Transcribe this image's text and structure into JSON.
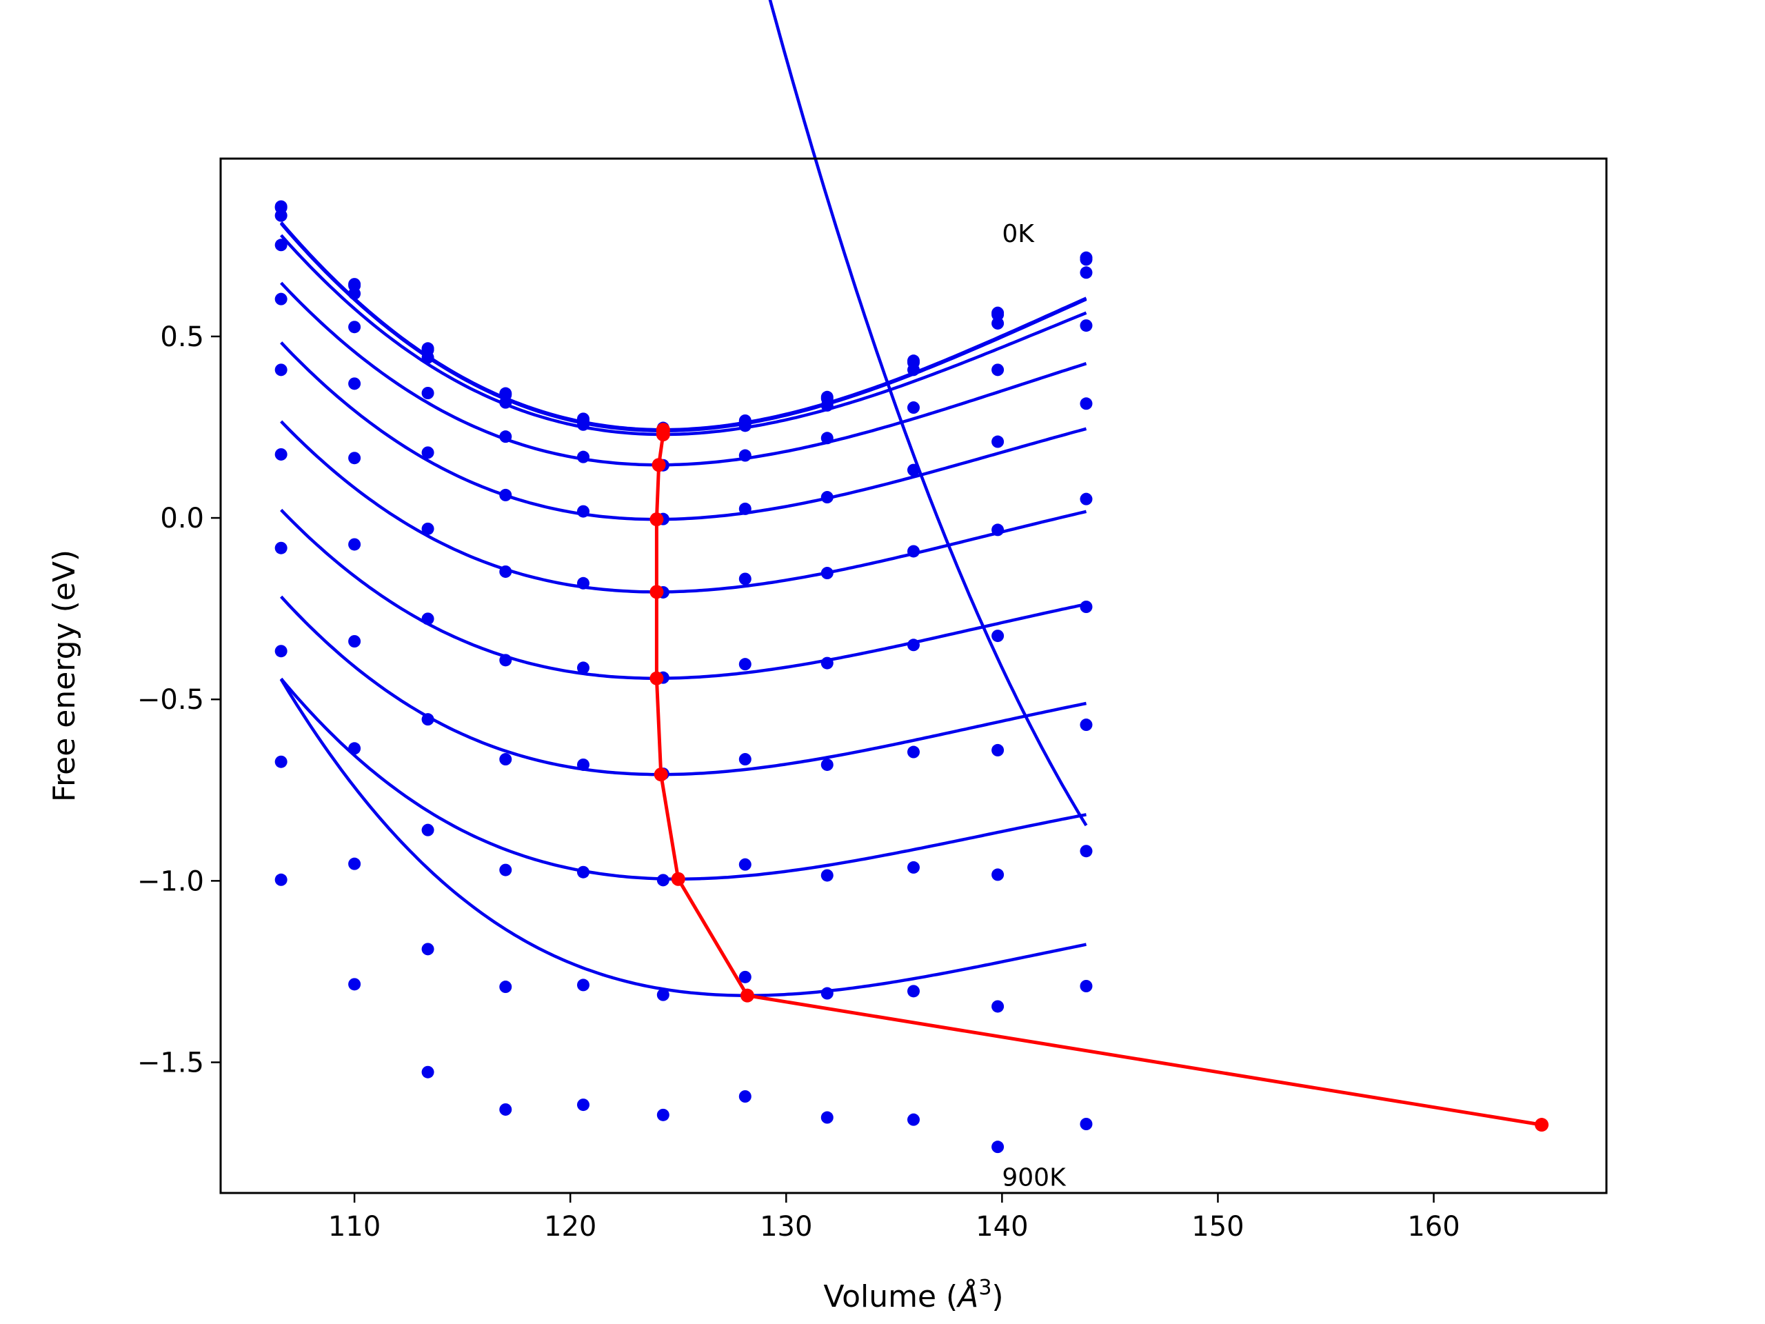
{
  "chart_data": {
    "type": "line",
    "xlabel_prefix": "Volume (",
    "xlabel_unit": "Å",
    "xlabel_exp": "3",
    "xlabel_suffix": ")",
    "ylabel": "Free energy (eV)",
    "xlim": [
      103.8,
      168
    ],
    "ylim": [
      -1.86,
      0.99
    ],
    "x_ticks": [
      110,
      120,
      130,
      140,
      150,
      160
    ],
    "y_ticks": [
      -1.5,
      -1.0,
      -0.5,
      0.0,
      0.5
    ],
    "x_tick_labels": [
      "110",
      "120",
      "130",
      "140",
      "150",
      "160"
    ],
    "y_tick_labels": [
      "−1.5",
      "−1.0",
      "−0.5",
      "0.0",
      "0.5"
    ],
    "annotations": [
      {
        "text": "0K",
        "x": 140.0,
        "y": 0.76
      },
      {
        "text": "900K",
        "x": 140.0,
        "y": -1.84
      }
    ],
    "x": [
      106.6,
      110.0,
      113.4,
      117.0,
      120.6,
      124.3,
      128.1,
      131.9,
      135.9,
      139.8,
      143.9
    ],
    "series": [
      {
        "values": [
          0.858,
          0.644,
          0.467,
          0.343,
          0.273,
          0.248,
          0.268,
          0.333,
          0.433,
          0.565,
          0.717
        ],
        "fit": {
          "xmin": 124.3,
          "ymin": 0.243,
          "a": 0.0022,
          "c": 0.5
        }
      },
      {
        "values": [
          0.855,
          0.64,
          0.463,
          0.339,
          0.269,
          0.244,
          0.264,
          0.329,
          0.428,
          0.56,
          0.712
        ],
        "fit": {
          "xmin": 124.3,
          "ymin": 0.24,
          "a": 0.0022,
          "c": 0.5
        }
      },
      {
        "values": [
          0.833,
          0.618,
          0.442,
          0.318,
          0.257,
          0.232,
          0.254,
          0.31,
          0.408,
          0.536,
          0.676
        ],
        "fit": {
          "xmin": 124.3,
          "ymin": 0.23,
          "a": 0.00215,
          "c": 0.55
        }
      },
      {
        "values": [
          0.752,
          0.526,
          0.344,
          0.224,
          0.168,
          0.145,
          0.172,
          0.22,
          0.304,
          0.408,
          0.53
        ],
        "fit": {
          "xmin": 124.1,
          "ymin": 0.146,
          "a": 0.00215,
          "c": 0.75
        }
      },
      {
        "values": [
          0.603,
          0.37,
          0.18,
          0.063,
          0.018,
          -0.003,
          0.025,
          0.057,
          0.132,
          0.21,
          0.315
        ],
        "fit": {
          "xmin": 124.0,
          "ymin": -0.004,
          "a": 0.00225,
          "c": 0.95
        }
      },
      {
        "values": [
          0.408,
          0.165,
          -0.03,
          -0.148,
          -0.18,
          -0.205,
          -0.168,
          -0.152,
          -0.092,
          -0.033,
          0.052
        ],
        "fit": {
          "xmin": 124.0,
          "ymin": -0.204,
          "a": 0.0023,
          "c": 1.15
        }
      },
      {
        "values": [
          0.175,
          -0.073,
          -0.278,
          -0.392,
          -0.413,
          -0.44,
          -0.403,
          -0.4,
          -0.35,
          -0.325,
          -0.245
        ],
        "fit": {
          "xmin": 124.0,
          "ymin": -0.442,
          "a": 0.0024,
          "c": 1.35
        }
      },
      {
        "values": [
          -0.083,
          -0.34,
          -0.555,
          -0.665,
          -0.68,
          -0.705,
          -0.665,
          -0.68,
          -0.645,
          -0.64,
          -0.57
        ],
        "fit": {
          "xmin": 124.2,
          "ymin": -0.707,
          "a": 0.0026,
          "c": 1.55
        }
      },
      {
        "values": [
          -0.367,
          -0.635,
          -0.86,
          -0.97,
          -0.976,
          -0.998,
          -0.955,
          -0.985,
          -0.963,
          -0.983,
          -0.918
        ],
        "fit": {
          "xmin": 125.0,
          "ymin": -0.995,
          "a": 0.0028,
          "c": 1.8
        }
      },
      {
        "values": [
          -0.672,
          -0.953,
          -1.188,
          -1.292,
          -1.287,
          -1.314,
          -1.265,
          -1.31,
          -1.304,
          -1.346,
          -1.29
        ],
        "fit": {
          "xmin": 128.2,
          "ymin": -1.316,
          "a": 0.0032,
          "c": 2.1
        }
      },
      {
        "values": [
          -0.997,
          -1.285,
          -1.527,
          -1.63,
          -1.617,
          -1.645,
          -1.594,
          -1.652,
          -1.658,
          -1.733,
          -1.67
        ],
        "fit": {
          "xmin": 165.0,
          "ymin": -1.672,
          "a": 0.0034,
          "c": 2.4
        }
      }
    ],
    "minima": {
      "x": [
        124.3,
        124.3,
        124.3,
        124.1,
        124.0,
        124.0,
        124.0,
        124.2,
        125.0,
        128.2,
        165.0
      ],
      "y": [
        0.243,
        0.24,
        0.23,
        0.146,
        -0.004,
        -0.204,
        -0.442,
        -0.707,
        -0.995,
        -1.316,
        -1.672
      ]
    },
    "colors": {
      "fit": "#0000ee",
      "points": "#0000ee",
      "minima": "#ff0000",
      "axes": "#000000"
    }
  }
}
